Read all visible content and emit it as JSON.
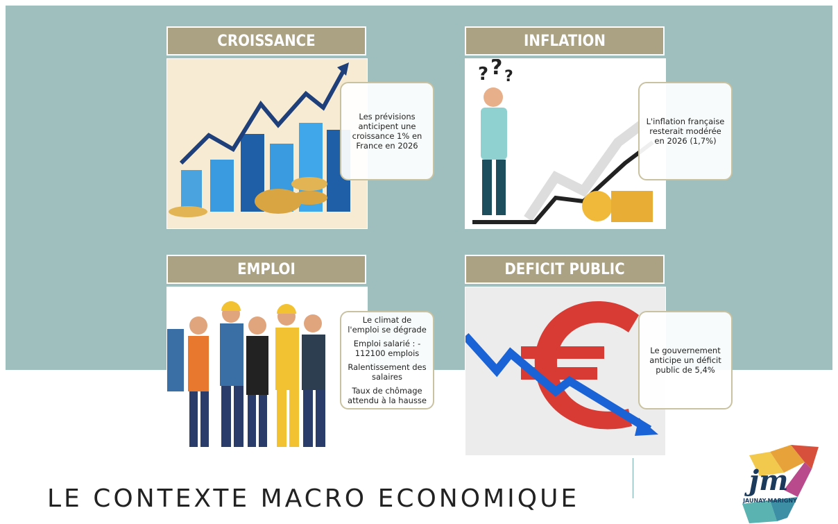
{
  "panels": [
    {
      "title": "CROISSANCE",
      "paragraphs": [
        "Les prévisions anticipent une croissance 1% en France en 2026"
      ]
    },
    {
      "title": "INFLATION",
      "paragraphs": [
        "L'inflation française resterait modérée en 2026 (1,7%)"
      ]
    },
    {
      "title": "EMPLOI",
      "paragraphs": [
        "Le climat de l'emploi se dégrade",
        "Emploi salarié : - 112100 emplois",
        "Ralentissement des salaires",
        "Taux de chômage attendu à la hausse"
      ]
    },
    {
      "title": "DEFICIT PUBLIC",
      "paragraphs": [
        "Le gouvernement anticipe un déficit public de 5,4%"
      ]
    }
  ],
  "title": "LE CONTEXTE MACRO ECONOMIQUE",
  "logo": {
    "initials": "jm",
    "name": "JAUNAY-MARIGNY"
  }
}
